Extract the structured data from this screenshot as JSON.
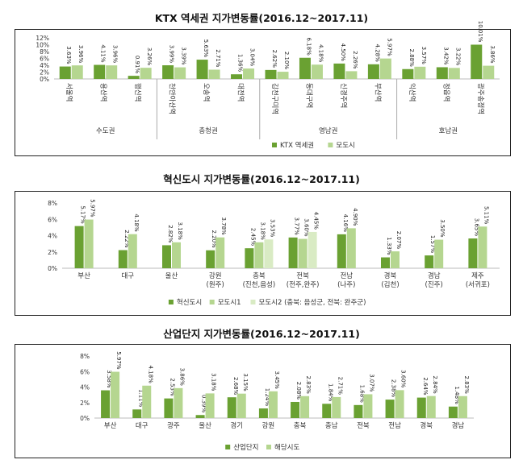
{
  "chart_data": [
    {
      "type": "bar",
      "title": "KTX 역세권 지가변동률(2016.12~2017.11)",
      "ylim": [
        0,
        12
      ],
      "yticks": [
        "0%",
        "2%",
        "4%",
        "6%",
        "8%",
        "10%",
        "12%"
      ],
      "categories": [
        "서울역",
        "용산역",
        "행신역",
        "천안아산역",
        "오송역",
        "대전역",
        "김천구미역",
        "동대구역",
        "신경주역",
        "부산역",
        "익산역",
        "정읍역",
        "광주송정역"
      ],
      "groups": [
        {
          "name": "수도권",
          "count": 3
        },
        {
          "name": "충청권",
          "count": 3
        },
        {
          "name": "영남권",
          "count": 4
        },
        {
          "name": "호남권",
          "count": 3
        }
      ],
      "series": [
        {
          "name": "KTX 역세권",
          "color": "#6aa132",
          "values": [
            3.63,
            4.11,
            0.91,
            3.99,
            5.63,
            1.36,
            2.62,
            6.18,
            4.5,
            4.28,
            2.88,
            3.42,
            10.01
          ]
        },
        {
          "name": "모도시",
          "color": "#b5d690",
          "values": [
            3.96,
            3.96,
            3.26,
            3.39,
            2.71,
            3.04,
            2.1,
            4.18,
            2.26,
            5.97,
            3.57,
            3.22,
            3.86
          ]
        }
      ],
      "value_labels": [
        [
          "3.63%",
          "4.11%",
          "0.91%",
          "3.99%",
          "5.63%",
          "1.36%",
          "2.62%",
          "6.18%",
          "4.50%",
          "4.28%",
          "2.88%",
          "3.42%",
          "10.01%"
        ],
        [
          "3.96%",
          "3.96%",
          "3.26%",
          "3.39%",
          "2.71%",
          "3.04%",
          "2.10%",
          "4.18%",
          "2.26%",
          "5.97%",
          "3.57%",
          "3.22%",
          "3.86%"
        ]
      ],
      "legend_position": "bottom"
    },
    {
      "type": "bar",
      "title": "혁신도시 지가변동률(2016.12~2017.11)",
      "ylim": [
        0,
        8
      ],
      "yticks": [
        "0%",
        "2%",
        "4%",
        "6%",
        "8%"
      ],
      "categories": [
        "부산",
        "대구",
        "울산",
        "강원\n(원주)",
        "충북\n(진천,음성)",
        "전북\n(전주,완주)",
        "전남\n(나주)",
        "경북\n(김천)",
        "경남\n(진주)",
        "제주\n(서귀포)"
      ],
      "series": [
        {
          "name": "혁신도시",
          "color": "#6aa132",
          "values": [
            5.17,
            2.22,
            2.82,
            2.2,
            2.45,
            3.77,
            4.16,
            1.33,
            1.57,
            3.65
          ]
        },
        {
          "name": "모도시1",
          "color": "#b5d690",
          "values": [
            5.97,
            4.18,
            3.18,
            3.78,
            3.18,
            3.6,
            4.9,
            2.07,
            3.5,
            5.11
          ]
        },
        {
          "name": "모도시2 (충북: 음성군, 전북: 완주군)",
          "color": "#d9ebc4",
          "values": [
            null,
            null,
            null,
            null,
            3.53,
            4.45,
            null,
            null,
            null,
            null
          ]
        }
      ],
      "value_labels": [
        [
          "5.17%",
          "2.22%",
          "2.82%",
          "2.20%",
          "2.45%",
          "3.77%",
          "4.16%",
          "1.33%",
          "1.57%",
          "3.65%"
        ],
        [
          "5.97%",
          "4.18%",
          "3.18%",
          "3.78%",
          "3.18%",
          "3.60%",
          "4.90%",
          "2.07%",
          "3.50%",
          "5.11%"
        ],
        [
          "",
          "",
          "",
          "",
          "3.53%",
          "4.45%",
          "",
          "",
          "",
          ""
        ]
      ],
      "legend_position": "bottom"
    },
    {
      "type": "bar",
      "title": "산업단지 지가변동률(2016.12~2017.11)",
      "ylim": [
        0,
        8
      ],
      "yticks": [
        "0%",
        "2%",
        "4%",
        "6%",
        "8%"
      ],
      "categories": [
        "부산",
        "대구",
        "광주",
        "울산",
        "경기",
        "강원",
        "충북",
        "충남",
        "전북",
        "전남",
        "경북",
        "경남"
      ],
      "series": [
        {
          "name": "산업단지",
          "color": "#6aa132",
          "values": [
            3.58,
            1.11,
            2.53,
            0.39,
            2.68,
            1.24,
            2.08,
            1.84,
            1.68,
            2.38,
            2.64,
            1.48
          ]
        },
        {
          "name": "해당시도",
          "color": "#b5d690",
          "values": [
            5.97,
            4.18,
            3.86,
            3.18,
            3.15,
            3.45,
            2.83,
            2.71,
            3.07,
            3.6,
            2.84,
            2.83
          ]
        }
      ],
      "value_labels": [
        [
          "3.58%",
          "1.11%",
          "2.53%",
          "0.39%",
          "2.68%",
          "1.24%",
          "2.08%",
          "1.84%",
          "1.68%",
          "2.38%",
          "2.64%",
          "1.48%"
        ],
        [
          "5.97%",
          "4.18%",
          "3.86%",
          "3.18%",
          "3.15%",
          "3.45%",
          "2.83%",
          "2.71%",
          "3.07%",
          "3.60%",
          "2.84%",
          "2.83%"
        ]
      ],
      "legend_position": "bottom"
    }
  ]
}
